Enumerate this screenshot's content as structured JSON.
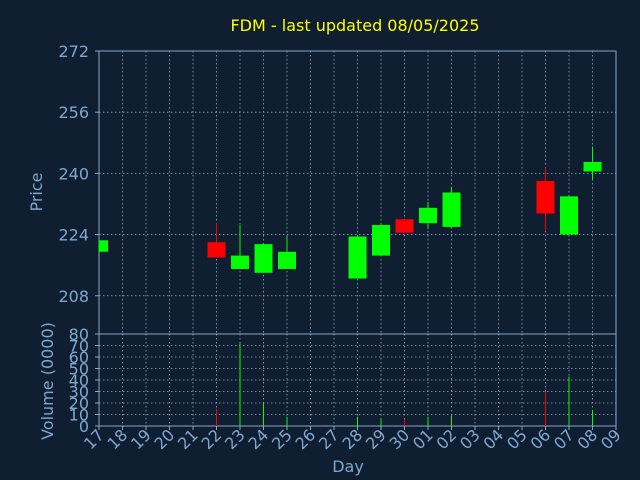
{
  "chart_data": {
    "type": "candlestick",
    "title": "FDM - last updated 08/05/2025",
    "xlabel": "Day",
    "ylabel": "Price",
    "ylabel_volume": "Volume (0000)",
    "ylim": [
      208,
      272
    ],
    "yticks": [
      208,
      224,
      240,
      256,
      272
    ],
    "volume_ylim": [
      0,
      80
    ],
    "volume_yticks": [
      0,
      10,
      20,
      30,
      40,
      50,
      60,
      70,
      80
    ],
    "x_ticks": [
      "17",
      "18",
      "19",
      "20",
      "21",
      "22",
      "23",
      "24",
      "25",
      "26",
      "27",
      "28",
      "29",
      "30",
      "01",
      "02",
      "03",
      "04",
      "05",
      "06",
      "07",
      "08",
      "09"
    ],
    "grid": true,
    "colors": {
      "up": "#00ff00",
      "down": "#ff0000",
      "title": "#ffff00",
      "text": "#7fa7d0",
      "background": "#0f1e30"
    },
    "candles": [
      {
        "date": "17",
        "open": 219.5,
        "high": 222.5,
        "low": 219.5,
        "close": 222.5,
        "volume": 0
      },
      {
        "date": "22",
        "open": 222,
        "high": 227,
        "low": 218,
        "close": 218,
        "volume": 15
      },
      {
        "date": "23",
        "open": 215,
        "high": 226.5,
        "low": 215,
        "close": 218.5,
        "volume": 72
      },
      {
        "date": "24",
        "open": 214,
        "high": 221.5,
        "low": 214,
        "close": 221.5,
        "volume": 20
      },
      {
        "date": "25",
        "open": 215,
        "high": 223.5,
        "low": 215,
        "close": 219.5,
        "volume": 8
      },
      {
        "date": "28",
        "open": 212.5,
        "high": 223.5,
        "low": 212.5,
        "close": 223.5,
        "volume": 8
      },
      {
        "date": "29",
        "open": 218.5,
        "high": 227,
        "low": 218.5,
        "close": 226.5,
        "volume": 6
      },
      {
        "date": "30",
        "open": 228,
        "high": 228,
        "low": 224.5,
        "close": 224.5,
        "volume": 6
      },
      {
        "date": "01",
        "open": 227,
        "high": 232.5,
        "low": 225.5,
        "close": 231,
        "volume": 8
      },
      {
        "date": "02",
        "open": 226,
        "high": 236.5,
        "low": 226,
        "close": 235,
        "volume": 9
      },
      {
        "date": "06",
        "open": 238,
        "high": 241.5,
        "low": 225,
        "close": 229.5,
        "volume": 30
      },
      {
        "date": "07",
        "open": 224,
        "high": 234,
        "low": 224,
        "close": 234,
        "volume": 43
      },
      {
        "date": "08",
        "open": 240.5,
        "high": 247,
        "low": 238.5,
        "close": 243,
        "volume": 14
      }
    ]
  }
}
